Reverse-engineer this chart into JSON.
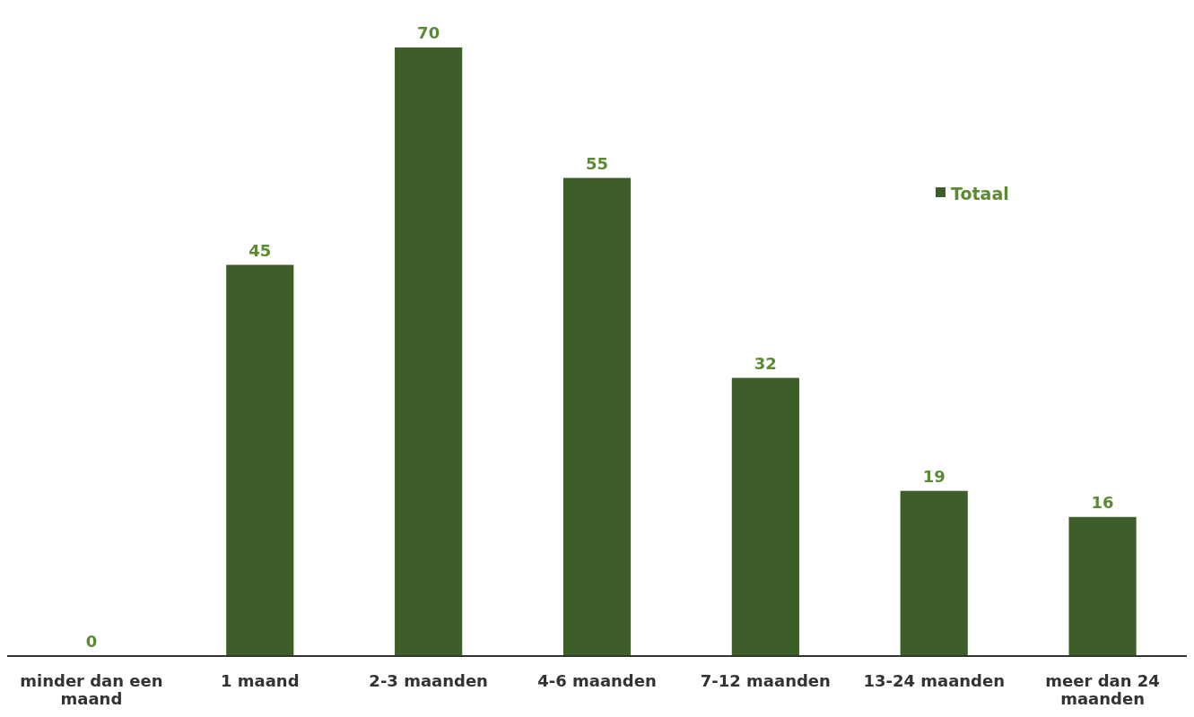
{
  "chart_data": {
    "type": "bar",
    "categories": [
      "minder dan een maand",
      "1 maand",
      "2-3 maanden",
      "4-6 maanden",
      "7-12 maanden",
      "13-24 maanden",
      "meer dan 24 maanden"
    ],
    "series": [
      {
        "name": "Totaal",
        "color": "#3d5e29",
        "values": [
          0,
          45,
          70,
          55,
          32,
          19,
          16
        ]
      }
    ],
    "data_labels": true,
    "legend": "top right"
  }
}
